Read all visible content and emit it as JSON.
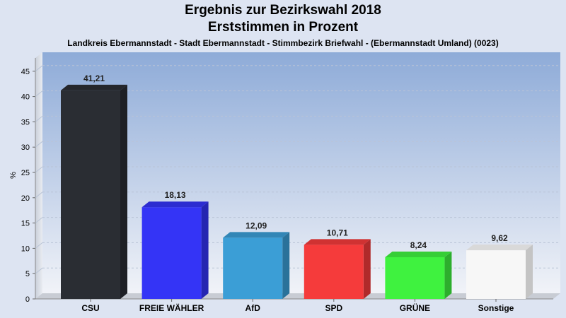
{
  "chart_data": {
    "type": "bar",
    "title": "Ergebnis zur Bezirkswahl 2018",
    "subtitle": "Erststimmen in Prozent",
    "caption": "Landkreis Ebermannstadt - Stadt Ebermannstadt - Stimmbezirk Briefwahl - (Ebermannstadt Umland) (0023)",
    "ylabel": "%",
    "xlabel": "",
    "ylim": [
      0,
      47
    ],
    "yticks": [
      "0",
      "5",
      "10",
      "15",
      "20",
      "25",
      "30",
      "35",
      "40",
      "45"
    ],
    "categories": [
      "CSU",
      "FREIE WÄHLER",
      "AfD",
      "SPD",
      "GRÜNE",
      "Sonstige"
    ],
    "values": [
      41.21,
      18.13,
      12.09,
      10.71,
      8.24,
      9.62
    ],
    "value_labels": [
      "41,21",
      "18,13",
      "12,09",
      "10,71",
      "8,24",
      "9,62"
    ],
    "colors": [
      "#2a2d33",
      "#3434f6",
      "#3b9ed6",
      "#f53b3b",
      "#3ff23f",
      "#f7f7f7"
    ],
    "grid": true,
    "legend": "none"
  }
}
